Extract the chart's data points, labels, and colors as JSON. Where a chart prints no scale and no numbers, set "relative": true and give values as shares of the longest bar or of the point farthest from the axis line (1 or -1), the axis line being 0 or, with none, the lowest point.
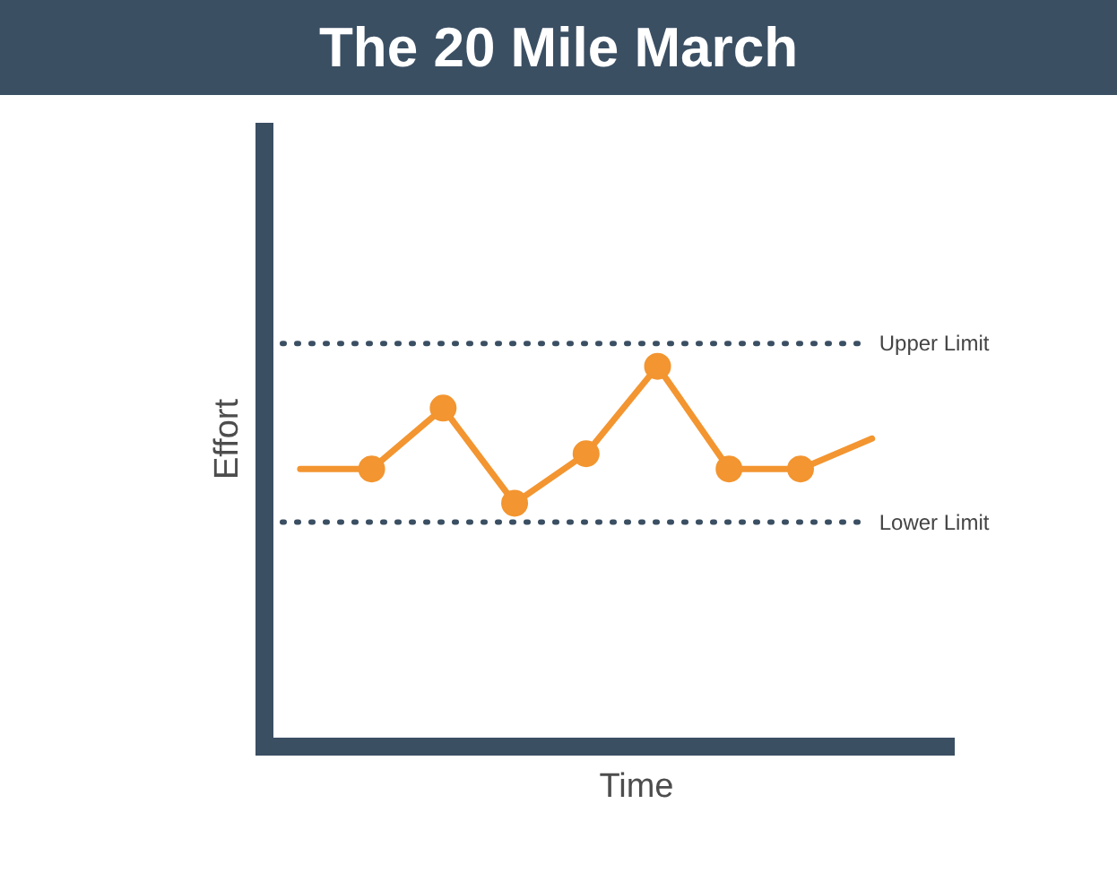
{
  "chart_data": {
    "type": "line",
    "title": "The 20 Mile March",
    "xlabel": "Time",
    "ylabel": "Effort",
    "relative": true,
    "categories": [
      null,
      null,
      null,
      null,
      null,
      null,
      null,
      null,
      null
    ],
    "series": [
      {
        "color": "#f39530",
        "values": [
          0.73,
          0.73,
          null,
          null,
          null,
          null,
          null,
          0.73,
          0.81
        ]
      },
      {
        "color": "#f39530",
        "marker": "circle",
        "values": [
          null,
          0.73,
          0.89,
          0.64,
          0.77,
          1,
          0.73,
          0.73,
          null
        ]
      }
    ],
    "ref_lines": [
      {
        "axis": "y",
        "value": 1.06,
        "label": "Upper Limit",
        "color": "#3b4f63",
        "line_style": "dotted"
      },
      {
        "axis": "y",
        "value": 0.59,
        "label": "Lower Limit",
        "color": "#3b4f63",
        "line_style": "dotted"
      }
    ]
  }
}
